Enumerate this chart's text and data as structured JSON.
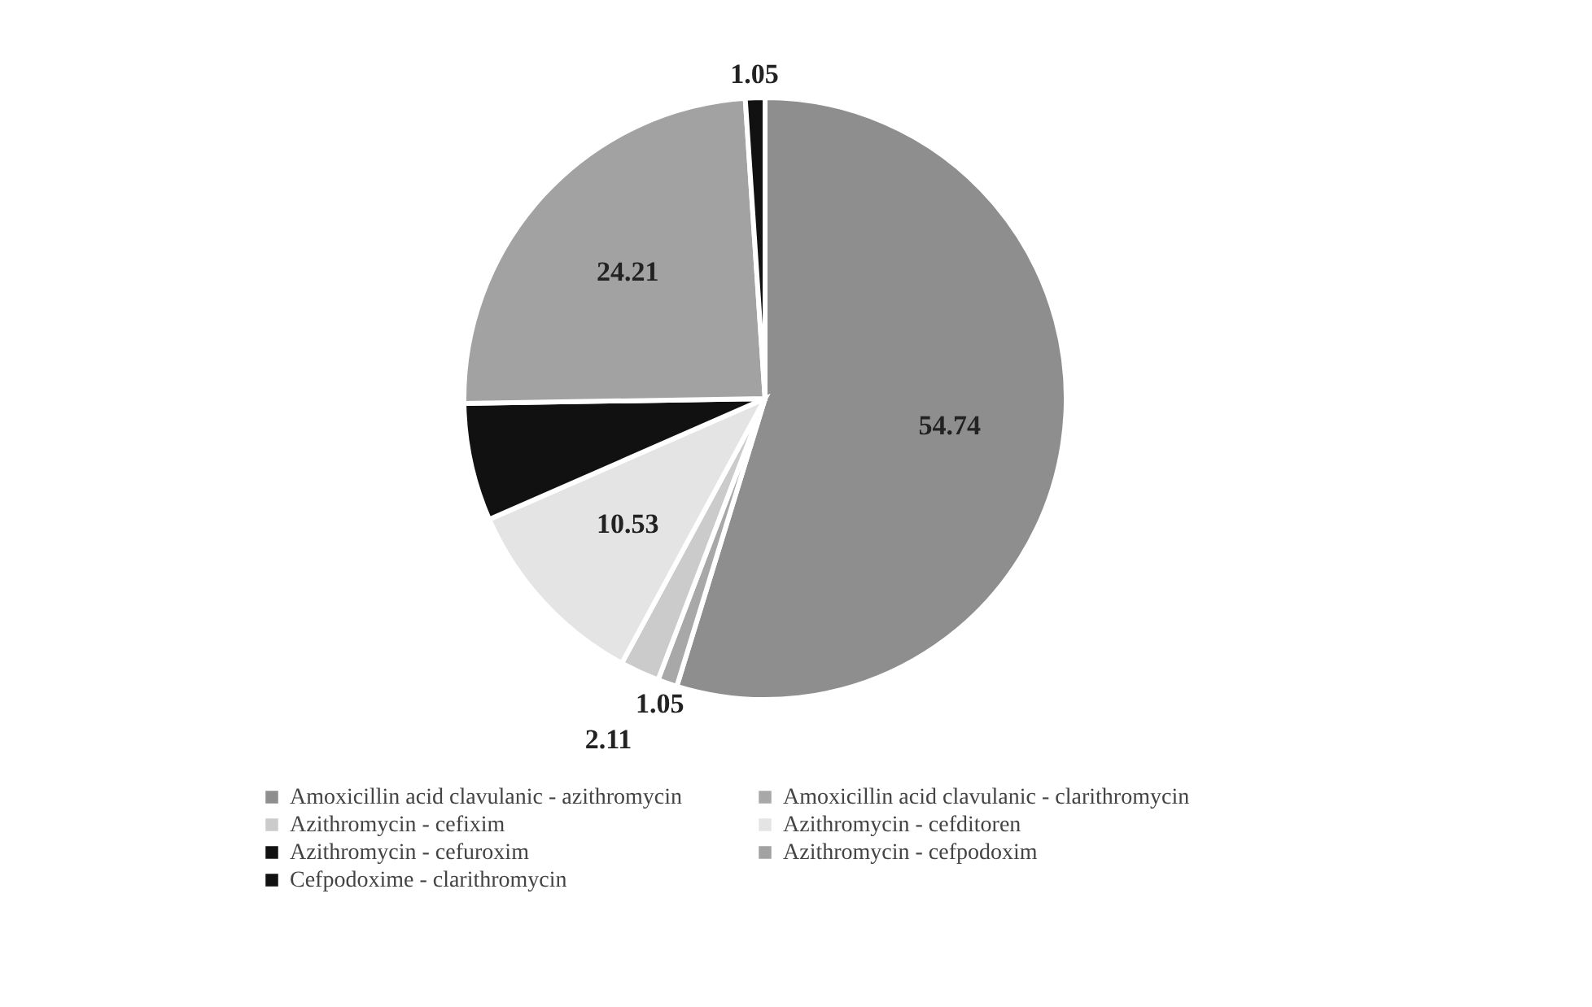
{
  "chart_data": {
    "type": "pie",
    "categories": [
      "Amoxicillin  acid clavulanic - azithromycin",
      "Amoxicillin  acid clavulanic - clarithromycin",
      "Azithromycin - cefixim",
      "Azithromycin - cefditoren",
      "Azithromycin - cefuroxim",
      "Azithromycin - cefpodoxim",
      "Cefpodoxime - clarithromycin"
    ],
    "values": [
      54.74,
      1.05,
      2.11,
      10.53,
      6.32,
      24.21,
      1.05
    ],
    "value_labels": [
      "54.74",
      "1.05",
      "2.11",
      "10.53",
      null,
      "24.21",
      "1.05"
    ],
    "colors": [
      "#8e8e8e",
      "#a8a8a8",
      "#cbcbcb",
      "#e4e4e4",
      "#111111",
      "#a2a2a2",
      "#111111"
    ],
    "legend": "bottom"
  }
}
